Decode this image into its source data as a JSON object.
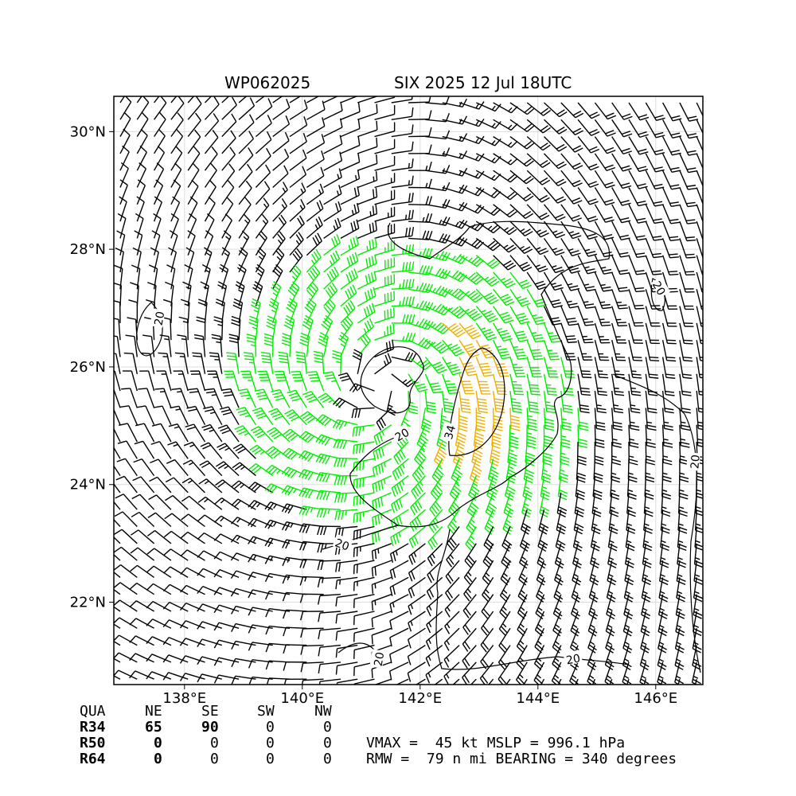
{
  "title": {
    "storm_id": "WP062025",
    "name_time": "SIX 2025 12 Jul 18UTC"
  },
  "map": {
    "lon_range": [
      136.8,
      146.8
    ],
    "lat_range": [
      20.6,
      30.6
    ],
    "lon_ticks": [
      "138°E",
      "140°E",
      "142°E",
      "144°E",
      "146°E"
    ],
    "lat_ticks": [
      "30°N",
      "28°N",
      "26°N",
      "24°N",
      "22°N"
    ],
    "grid": true,
    "storm_center": {
      "lon": 141.3,
      "lat": 25.7
    },
    "barb_colors": {
      "below_34kt": "#000000",
      "34_to_49kt": "#00ee00",
      "50_plus_kt": "#f0b000"
    },
    "contour_labels": [
      "20",
      "20",
      "20",
      "20",
      "20",
      "20",
      "20",
      "34"
    ]
  },
  "wind_radii": {
    "header": [
      "QUA",
      "NE",
      "SE",
      "SW",
      "NW"
    ],
    "rows": [
      {
        "label": "R34",
        "values": [
          "65",
          "90",
          "0",
          "0"
        ]
      },
      {
        "label": "R50",
        "values": [
          "0",
          "0",
          "0",
          "0"
        ]
      },
      {
        "label": "R64",
        "values": [
          "0",
          "0",
          "0",
          "0"
        ]
      }
    ]
  },
  "stats": {
    "line1": "VMAX =  45 kt MSLP = 996.1 hPa",
    "line2": "RMW =  79 n mi BEARING = 340 degrees"
  }
}
